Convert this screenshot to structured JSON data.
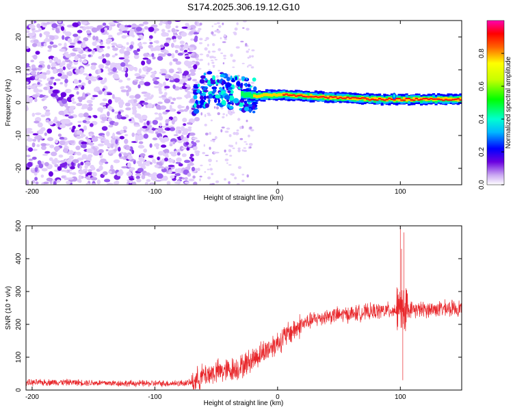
{
  "title": "S174.2025.306.19.12.G10",
  "chart_data": [
    {
      "type": "heatmap",
      "name": "spectrogram",
      "xlabel": "Height of straight line (km)",
      "ylabel": "Frequency (Hz)",
      "xlim": [
        -205,
        150
      ],
      "ylim": [
        -25,
        25
      ],
      "xticks": [
        -200,
        -100,
        0,
        100
      ],
      "yticks": [
        -20,
        -10,
        0,
        10,
        20
      ],
      "colorbar": {
        "label": "Normalized spectral amplitude",
        "range": [
          0,
          1
        ],
        "ticks": [
          "0.0",
          "0.2",
          "0.4",
          "0.6",
          "0.8"
        ],
        "tick_values": [
          0,
          0.2,
          0.4,
          0.6,
          0.8
        ]
      },
      "noise_region_x": [
        -205,
        -65
      ],
      "ridge": [
        {
          "x": -65,
          "freq": 3.5,
          "amp": 0.25
        },
        {
          "x": -50,
          "freq": 4.5,
          "amp": 0.3
        },
        {
          "x": -35,
          "freq": 3,
          "amp": 0.35
        },
        {
          "x": -20,
          "freq": 2,
          "amp": 0.55
        },
        {
          "x": 0,
          "freq": 2.5,
          "amp": 0.7
        },
        {
          "x": 20,
          "freq": 2,
          "amp": 0.85
        },
        {
          "x": 50,
          "freq": 1.5,
          "amp": 0.95
        },
        {
          "x": 80,
          "freq": 1,
          "amp": 0.9
        },
        {
          "x": 100,
          "freq": 1,
          "amp": 0.9
        },
        {
          "x": 150,
          "freq": 1,
          "amp": 0.95
        }
      ]
    },
    {
      "type": "line",
      "name": "snr",
      "xlabel": "Height of straight line (km)",
      "ylabel": "SNR (10 * v/v)",
      "xlim": [
        -205,
        150
      ],
      "ylim": [
        0,
        500
      ],
      "xticks": [
        -200,
        -100,
        0,
        100
      ],
      "yticks": [
        0,
        100,
        200,
        300,
        400,
        500
      ],
      "series": [
        {
          "name": "SNR",
          "color": "#e8262a",
          "trend": [
            [
              -205,
              22
            ],
            [
              -180,
              24
            ],
            [
              -150,
              22
            ],
            [
              -120,
              20
            ],
            [
              -90,
              20
            ],
            [
              -70,
              22
            ],
            [
              -60,
              45
            ],
            [
              -50,
              55
            ],
            [
              -40,
              60
            ],
            [
              -30,
              70
            ],
            [
              -20,
              95
            ],
            [
              -10,
              120
            ],
            [
              0,
              145
            ],
            [
              10,
              175
            ],
            [
              20,
              200
            ],
            [
              30,
              215
            ],
            [
              40,
              225
            ],
            [
              60,
              232
            ],
            [
              80,
              240
            ],
            [
              100,
              245
            ],
            [
              120,
              245
            ],
            [
              150,
              250
            ]
          ],
          "spikes": [
            [
              100,
              500
            ],
            [
              101,
              430
            ],
            [
              102,
              30
            ],
            [
              103,
              480
            ]
          ]
        }
      ]
    }
  ]
}
